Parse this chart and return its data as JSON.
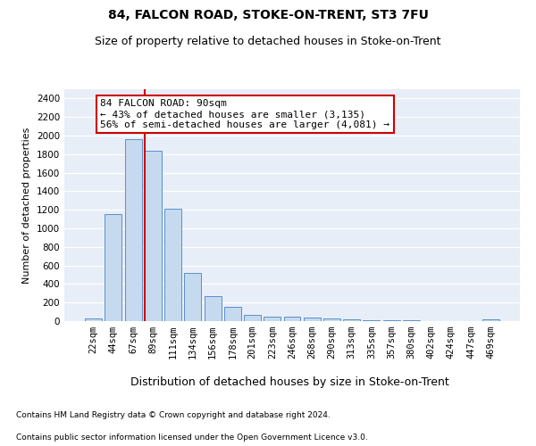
{
  "title1": "84, FALCON ROAD, STOKE-ON-TRENT, ST3 7FU",
  "title2": "Size of property relative to detached houses in Stoke-on-Trent",
  "xlabel": "Distribution of detached houses by size in Stoke-on-Trent",
  "ylabel": "Number of detached properties",
  "footnote1": "Contains HM Land Registry data © Crown copyright and database right 2024.",
  "footnote2": "Contains public sector information licensed under the Open Government Licence v3.0.",
  "annotation_line1": "84 FALCON ROAD: 90sqm",
  "annotation_line2": "← 43% of detached houses are smaller (3,135)",
  "annotation_line3": "56% of semi-detached houses are larger (4,081) →",
  "categories": [
    "22sqm",
    "44sqm",
    "67sqm",
    "89sqm",
    "111sqm",
    "134sqm",
    "156sqm",
    "178sqm",
    "201sqm",
    "223sqm",
    "246sqm",
    "268sqm",
    "290sqm",
    "313sqm",
    "335sqm",
    "357sqm",
    "380sqm",
    "402sqm",
    "424sqm",
    "447sqm",
    "469sqm"
  ],
  "values": [
    25,
    1150,
    1960,
    1840,
    1210,
    515,
    265,
    155,
    65,
    50,
    45,
    35,
    25,
    20,
    10,
    10,
    10,
    0,
    0,
    0,
    15
  ],
  "bar_color": "#c5d9ef",
  "bar_edge_color": "#5b8fc9",
  "marker_color": "#cc0000",
  "ylim": [
    0,
    2500
  ],
  "yticks": [
    0,
    200,
    400,
    600,
    800,
    1000,
    1200,
    1400,
    1600,
    1800,
    2000,
    2200,
    2400
  ],
  "plot_bg_color": "#e8eef8",
  "annotation_box_color": "#ffffff",
  "annotation_box_edge": "#cc0000",
  "title1_fontsize": 10,
  "title2_fontsize": 9,
  "xlabel_fontsize": 9,
  "ylabel_fontsize": 8,
  "tick_fontsize": 7.5,
  "footnote_fontsize": 6.5,
  "annotation_fontsize": 8
}
